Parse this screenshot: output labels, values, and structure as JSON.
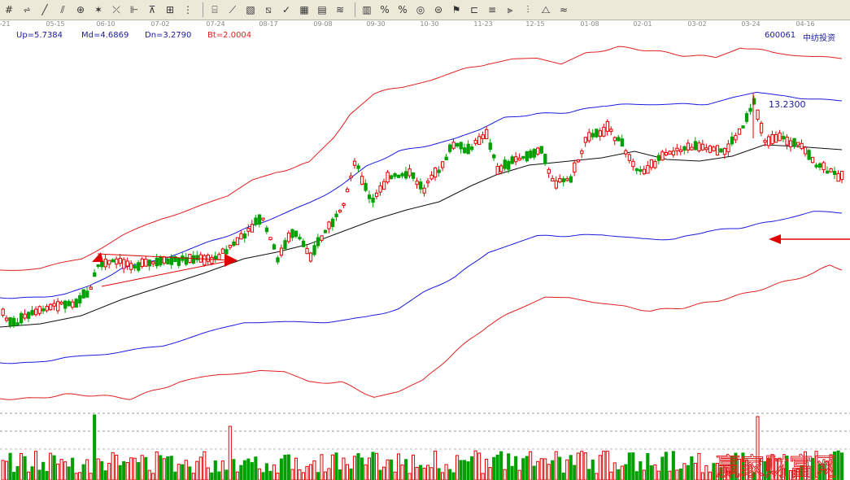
{
  "toolbar": {
    "groups": [
      [
        {
          "icon": "grid-icon",
          "glyph": "#"
        },
        {
          "icon": "cursor-icon",
          "glyph": "⩫"
        },
        {
          "icon": "line-icon",
          "glyph": "╱"
        },
        {
          "icon": "parallel-icon",
          "glyph": "⫽"
        },
        {
          "icon": "target-icon",
          "glyph": "⊕"
        },
        {
          "icon": "gann-fan-icon",
          "glyph": "✶"
        },
        {
          "icon": "cross-line-icon",
          "glyph": "⤫"
        },
        {
          "icon": "channel-icon",
          "glyph": "⊩"
        },
        {
          "icon": "line-cut-icon",
          "glyph": "⊼"
        },
        {
          "icon": "box-icon",
          "glyph": "⊞"
        },
        {
          "icon": "dots-icon",
          "glyph": "⋮"
        }
      ],
      [
        {
          "icon": "rectangle-icon",
          "glyph": "⌸"
        },
        {
          "icon": "ray-icon",
          "glyph": "⟋"
        },
        {
          "icon": "square-icon",
          "glyph": "▧"
        },
        {
          "icon": "diagonal-icon",
          "glyph": "⧅"
        },
        {
          "icon": "check-icon",
          "glyph": "✓"
        },
        {
          "icon": "table-icon",
          "glyph": "▦"
        },
        {
          "icon": "grid-fine-icon",
          "glyph": "▤"
        },
        {
          "icon": "stripes-icon",
          "glyph": "≋"
        }
      ],
      [
        {
          "icon": "bar-chart-icon",
          "glyph": "▥"
        },
        {
          "icon": "percent-slash-icon",
          "glyph": "%"
        },
        {
          "icon": "percent-icon",
          "glyph": "%"
        },
        {
          "icon": "coin-icon",
          "glyph": "◎"
        },
        {
          "icon": "money-icon",
          "glyph": "⊜"
        },
        {
          "icon": "flag-icon",
          "glyph": "⚑"
        },
        {
          "icon": "comparison-icon",
          "glyph": "⊏"
        },
        {
          "icon": "lines-icon",
          "glyph": "≡"
        },
        {
          "icon": "trend-icon",
          "glyph": "⫸"
        },
        {
          "icon": "bars-icon",
          "glyph": "⫶"
        },
        {
          "icon": "mountain-icon",
          "glyph": "⧍"
        },
        {
          "icon": "wave-icon",
          "glyph": "≈"
        }
      ]
    ]
  },
  "date_labels": [
    "-21",
    "05-15",
    "06-10",
    "07-02",
    "07-24",
    "08-17",
    "09-08",
    "09-30",
    "10-30",
    "11-23",
    "12-15",
    "01-08",
    "02-01",
    "03-02",
    "03-24",
    "04-16"
  ],
  "info": {
    "up": "Up=5.7384",
    "md": "Md=4.6869",
    "dn": "Dn=3.2790",
    "bt": "Bt=2.0004",
    "code": "600061",
    "name": "中纺投资"
  },
  "colors": {
    "up_band": "#e02020",
    "mid_band": "#1a1ae0",
    "ma": "#111111",
    "rise": "#e00000",
    "fall": "#00a000",
    "arrow": "#e00000",
    "watermark": "#e02020"
  },
  "chart_data": {
    "type": "candlestick",
    "price_label": "13.2300",
    "watermark": "赢家财富网",
    "peak_price": 13.23,
    "candle_count": 230,
    "x_dates": [
      "-21",
      "05-15",
      "06-10",
      "07-02",
      "07-24",
      "08-17",
      "09-08",
      "09-30",
      "10-30",
      "11-23",
      "12-15",
      "01-08",
      "02-01",
      "03-02",
      "03-24",
      "04-16"
    ]
  }
}
